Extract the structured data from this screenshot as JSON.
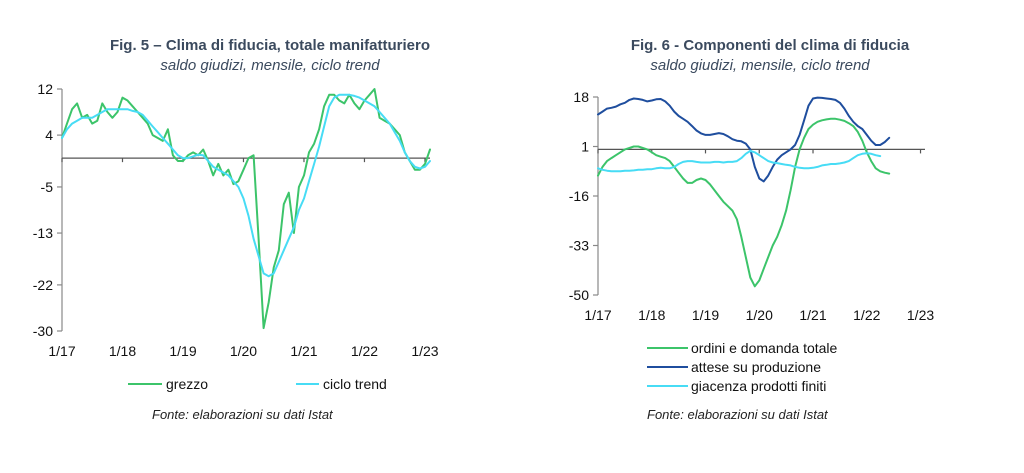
{
  "chart_data": [
    {
      "type": "line",
      "title": "Fig. 5 – Clima di fiducia, totale manifatturiero",
      "subtitle": "saldo giudizi, mensile, ciclo trend",
      "source": "Fonte: elaborazioni su dati Istat",
      "xlabel": "",
      "ylabel": "",
      "x_start": "1/17",
      "x_ticks": [
        "1/17",
        "1/18",
        "1/19",
        "1/20",
        "1/21",
        "1/22",
        "1/23"
      ],
      "y_ticks": [
        12,
        4,
        -5,
        -13,
        -22,
        -30
      ],
      "ylim": [
        -30,
        12
      ],
      "xlim_months": [
        0,
        73
      ],
      "grid": false,
      "legend": "bottom",
      "series": [
        {
          "name": "grezzo",
          "color": "#3cc46a",
          "values": [
            3.5,
            6,
            8.5,
            9.5,
            7,
            7.5,
            6,
            6.5,
            9.5,
            8,
            7,
            8,
            10.5,
            10,
            9,
            8,
            7,
            6,
            4,
            3.5,
            3,
            5,
            0.5,
            -0.5,
            -0.5,
            0.5,
            1,
            0.5,
            1.5,
            -0.5,
            -3,
            -1,
            -3,
            -2,
            -4.5,
            -4,
            -2,
            0,
            0.5,
            -14,
            -29.5,
            -25,
            -19,
            -16,
            -8,
            -6,
            -13,
            -5,
            -3,
            1,
            2.5,
            5,
            9,
            11,
            11,
            10,
            9.5,
            11,
            9.5,
            8.5,
            10,
            11,
            12,
            7,
            6.5,
            6,
            5,
            4,
            1,
            -0.5,
            -2,
            -2,
            -1,
            1.5
          ]
        },
        {
          "name": "ciclo trend",
          "color": "#47dcf5",
          "values": [
            3.5,
            5,
            6,
            6.5,
            7,
            7,
            7,
            7.5,
            8,
            8.5,
            8.5,
            8.5,
            8.5,
            8.5,
            8.2,
            8,
            7.5,
            6.5,
            5.5,
            4.5,
            3.5,
            2.5,
            1.5,
            0.5,
            0,
            0,
            0.3,
            0.6,
            0.5,
            -0.5,
            -1.5,
            -2,
            -2.5,
            -3,
            -4,
            -5,
            -7,
            -10,
            -14,
            -17,
            -20,
            -20.5,
            -20,
            -18,
            -16,
            -14,
            -12,
            -9,
            -7,
            -4,
            -1,
            2,
            5.5,
            9,
            10.5,
            11,
            11,
            11,
            10.8,
            10.5,
            10,
            9.5,
            9,
            8,
            7,
            6,
            4.5,
            3,
            1,
            -0.5,
            -1.5,
            -1.8,
            -1.5,
            -0.5
          ]
        }
      ]
    },
    {
      "type": "line",
      "title": "Fig. 6 - Componenti del clima di fiducia",
      "subtitle": "saldo giudizi, mensile, ciclo trend",
      "source": "Fonte: elaborazioni su dati Istat",
      "xlabel": "",
      "ylabel": "",
      "x_start": "1/17",
      "x_ticks": [
        "1/17",
        "1/18",
        "1/19",
        "1/20",
        "1/21",
        "1/22",
        "1/23"
      ],
      "y_ticks": [
        18,
        1,
        -16,
        -33,
        -50
      ],
      "ylim": [
        -50,
        18
      ],
      "xlim_months": [
        0,
        73
      ],
      "grid": false,
      "legend": "bottom",
      "series": [
        {
          "name": "ordini e domanda totale",
          "color": "#3cc46a",
          "values": [
            -9,
            -6,
            -4,
            -3,
            -2,
            -1,
            0,
            0.5,
            1,
            1,
            0.5,
            0,
            -1,
            -2,
            -2.5,
            -3,
            -4,
            -6,
            -8,
            -10,
            -11.5,
            -11.5,
            -10.5,
            -10,
            -10.5,
            -12,
            -14,
            -16,
            -18,
            -19.5,
            -21,
            -24,
            -30,
            -37,
            -44,
            -47,
            -45,
            -41,
            -37,
            -33,
            -30,
            -26,
            -21,
            -14,
            -6,
            0,
            4,
            7,
            8.5,
            9.5,
            10,
            10.3,
            10.5,
            10.5,
            10.2,
            9.8,
            9,
            8,
            6,
            3,
            -1,
            -4,
            -6.5,
            -7.5,
            -8,
            -8.3
          ]
        },
        {
          "name": "attese su produzione",
          "color": "#1f4e9e",
          "values": [
            12,
            13,
            14,
            14.3,
            14.7,
            15.5,
            16,
            17,
            17.5,
            17.3,
            17,
            16.5,
            16.8,
            17.2,
            17.3,
            16.5,
            15,
            13,
            11.5,
            10.5,
            9.5,
            8,
            6.5,
            5.5,
            5,
            5,
            5.3,
            5.6,
            5.3,
            4.5,
            3.5,
            3,
            2.8,
            2,
            0,
            -6,
            -10,
            -11,
            -9,
            -6,
            -3.5,
            -2,
            -1,
            0,
            1.5,
            5,
            10,
            15,
            17.5,
            17.8,
            17.7,
            17.5,
            17.3,
            17,
            16,
            14,
            11.5,
            9.5,
            8,
            7,
            5,
            3,
            1.5,
            1.5,
            2.5,
            4
          ]
        },
        {
          "name": "giacenza prodotti finiti",
          "color": "#47dcf5",
          "values": [
            -6.5,
            -7,
            -7.3,
            -7.5,
            -7.5,
            -7.5,
            -7.3,
            -7.3,
            -7.2,
            -7,
            -7,
            -6.8,
            -6.8,
            -6.5,
            -6.3,
            -6.5,
            -6.5,
            -6,
            -5,
            -4.3,
            -4,
            -4,
            -4.3,
            -4.5,
            -4.5,
            -4.5,
            -4.3,
            -4.3,
            -4.5,
            -4.3,
            -4.3,
            -4,
            -3,
            -1.5,
            -0.5,
            -1,
            -2,
            -3,
            -4,
            -4.5,
            -4.7,
            -5,
            -5.3,
            -5.5,
            -6,
            -6.3,
            -6.5,
            -6.5,
            -6.3,
            -6,
            -5.5,
            -5.3,
            -5,
            -5,
            -4.8,
            -4.5,
            -4,
            -3,
            -2,
            -1.5,
            -1.3,
            -1.5,
            -2,
            -2.3
          ]
        }
      ]
    }
  ]
}
